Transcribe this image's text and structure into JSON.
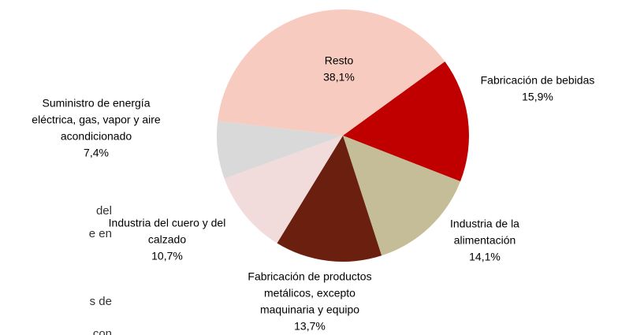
{
  "chart_data": {
    "type": "pie",
    "categories": [
      [
        "Fabricación de bebidas"
      ],
      [
        "Industria de la",
        "alimentación"
      ],
      [
        "Fabricación de productos",
        "metálicos, excepto",
        "maquinaria y equipo"
      ],
      [
        "Industria del cuero y del",
        "calzado"
      ],
      [
        "Suministro de energía",
        "eléctrica, gas, vapor y aire",
        "acondicionado"
      ],
      [
        "Resto"
      ]
    ],
    "values": [
      15.9,
      14.1,
      13.7,
      10.7,
      7.4,
      38.1
    ],
    "value_labels": [
      "15,9%",
      "14,1%",
      "13,7%",
      "10,7%",
      "7,4%",
      "38,1%"
    ],
    "colors": [
      "#c00000",
      "#c4bd97",
      "#6b1f0e",
      "#f2dcdb",
      "#d9d9d9",
      "#f8cbc0"
    ]
  },
  "background_text": [
    "del",
    "e en",
    "s de",
    "con"
  ]
}
